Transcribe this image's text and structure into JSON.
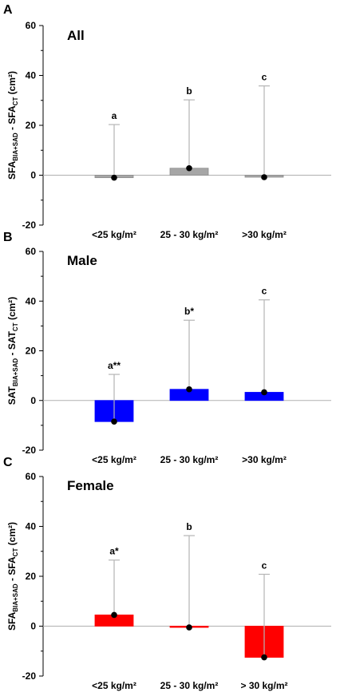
{
  "chart_data": [
    {
      "type": "bar",
      "panel_label": "A",
      "title": "All",
      "ylabel_main": "SFA",
      "ylabel_sub1": "BIA+SAD",
      "ylabel_mid": " - SFA",
      "ylabel_sub2": "CT",
      "ylabel_unit": " (cm²)",
      "ylim": [
        -20,
        60
      ],
      "yticks": [
        "60",
        "40",
        "20",
        "0",
        "-20"
      ],
      "categories": [
        "<25 kg/m²",
        "25 - 30  kg/m²",
        ">30 kg/m²"
      ],
      "series": [
        {
          "bar_values": [
            -1.0,
            2.8,
            -0.8
          ],
          "point_values": [
            -1.0,
            2.8,
            -0.8
          ],
          "upper_values": [
            20.3,
            30.2,
            35.8
          ],
          "sig_labels": [
            "a",
            "b",
            "c"
          ],
          "color": "#a6a6a6"
        }
      ]
    },
    {
      "type": "bar",
      "panel_label": "B",
      "title": "Male",
      "ylabel_main": "SAT",
      "ylabel_sub1": "BIA+SAD",
      "ylabel_mid": " - SAT",
      "ylabel_sub2": "CT",
      "ylabel_unit": " (cm²)",
      "ylim": [
        -20,
        60
      ],
      "yticks": [
        "60",
        "40",
        "20",
        "0",
        "-20"
      ],
      "categories": [
        "<25 kg/m²",
        "25 - 30 kg/m²",
        ">30 kg/m²"
      ],
      "series": [
        {
          "bar_values": [
            -8.5,
            4.5,
            3.3
          ],
          "point_values": [
            -8.5,
            4.5,
            3.3
          ],
          "upper_values": [
            10.5,
            32.3,
            40.5
          ],
          "sig_labels": [
            "a**",
            "b*",
            "c"
          ],
          "color": "#0000ff"
        }
      ]
    },
    {
      "type": "bar",
      "panel_label": "C",
      "title": "Female",
      "ylabel_main": "SFA",
      "ylabel_sub1": "BIA+SAD",
      "ylabel_mid": " - SFA",
      "ylabel_sub2": "CT",
      "ylabel_unit": " (cm²)",
      "ylim": [
        -20,
        60
      ],
      "yticks": [
        "60",
        "40",
        "20",
        "0",
        "-20"
      ],
      "categories": [
        "<25 kg/m²",
        "25 - 30  kg/m²",
        "> 30 kg/m²"
      ],
      "series": [
        {
          "bar_values": [
            4.5,
            -0.5,
            -12.5
          ],
          "point_values": [
            4.5,
            -0.5,
            -12.5
          ],
          "upper_values": [
            26.5,
            36.3,
            20.8
          ],
          "sig_labels": [
            "a*",
            "b",
            "c"
          ],
          "color": "#ff0000"
        }
      ]
    }
  ]
}
